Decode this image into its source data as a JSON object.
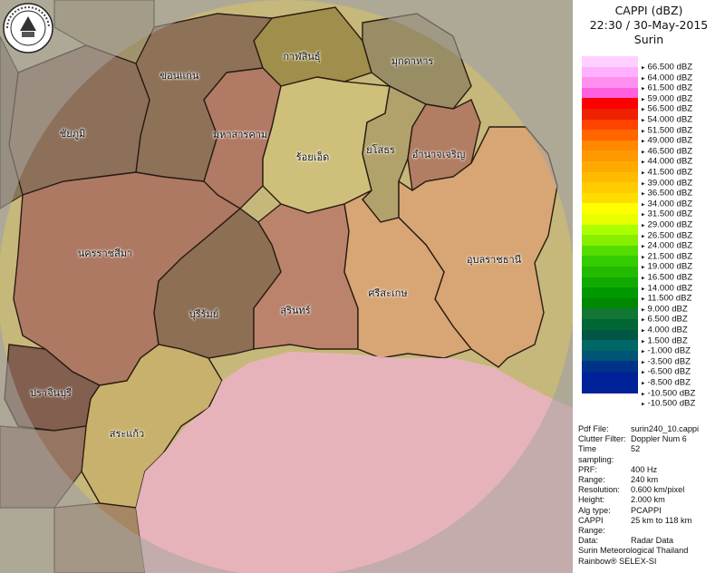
{
  "header": {
    "product": "CAPPI (dBZ)",
    "datetime": "22:30 / 30-May-2015",
    "station": "Surin"
  },
  "colors": {
    "province_fill": "#b97a6b",
    "olive": "#9a8e5e",
    "ring": "#d6c36c",
    "echo": "#f0b3c2"
  },
  "provinces": [
    {
      "name": "กาฬสินธุ์",
      "color": "#9e8c4a"
    },
    {
      "name": "มุกดาหาร",
      "color": "#978a64"
    },
    {
      "name": "ขอนแก่น",
      "color": "#8b6e56"
    },
    {
      "name": "ชัยภูมิ",
      "color": "#8a6c59"
    },
    {
      "name": "มหาสารคาม",
      "color": "#b07663"
    },
    {
      "name": "ร้อยเอ็ด",
      "color": "#cfc07a"
    },
    {
      "name": "ยโสธร",
      "color": "#b0a06a"
    },
    {
      "name": "อำนาจเจริญ",
      "color": "#b07a62"
    },
    {
      "name": "นครราชสีมา",
      "color": "#ad7561"
    },
    {
      "name": "บุรีรัมย์",
      "color": "#8a6a52"
    },
    {
      "name": "สุรินทร์",
      "color": "#ba806a"
    },
    {
      "name": "ศรีสะเกษ",
      "color": "#d8a474"
    },
    {
      "name": "อุบลราชธานี",
      "color": "#d8a474"
    },
    {
      "name": "ปราจีนบุรี",
      "color": "#7e5a4c"
    },
    {
      "name": "สระแก้ว",
      "color": "#c8b06c"
    }
  ],
  "legend": {
    "labels": [
      "66.500 dBZ",
      "64.000 dBZ",
      "61.500 dBZ",
      "59.000 dBZ",
      "56.500 dBZ",
      "54.000 dBZ",
      "51.500 dBZ",
      "49.000 dBZ",
      "46.500 dBZ",
      "44.000 dBZ",
      "41.500 dBZ",
      "39.000 dBZ",
      "36.500 dBZ",
      "34.000 dBZ",
      "31.500 dBZ",
      "29.000 dBZ",
      "26.500 dBZ",
      "24.000 dBZ",
      "21.500 dBZ",
      "19.000 dBZ",
      "16.500 dBZ",
      "14.000 dBZ",
      "11.500 dBZ",
      "9.000 dBZ",
      "6.500 dBZ",
      "4.000 dBZ",
      "1.500 dBZ",
      "-1.000 dBZ",
      "-3.500 dBZ",
      "-6.500 dBZ",
      "-8.500 dBZ",
      "-10.500 dBZ",
      "-10.500 dBZ"
    ],
    "colors": [
      "#ffd0ff",
      "#ffb0ff",
      "#ff90f0",
      "#ff60e0",
      "#ff0000",
      "#ee2200",
      "#ff4400",
      "#ff6600",
      "#ff8800",
      "#ff9900",
      "#ffaa00",
      "#ffbb00",
      "#ffcc00",
      "#ffdd00",
      "#ffff00",
      "#e8ff00",
      "#aaff00",
      "#88ee00",
      "#55dd00",
      "#33cc00",
      "#22bb00",
      "#11aa00",
      "#009900",
      "#008800",
      "#117733",
      "#006633",
      "#005544",
      "#006666",
      "#005577",
      "#003388",
      "#002299",
      "#002299"
    ]
  },
  "info": [
    {
      "k": "Pdf File:",
      "v": "surin240_10.cappi"
    },
    {
      "k": "Clutter Filter:",
      "v": "Doppler Num 6"
    },
    {
      "k": "Time sampling:",
      "v": "52"
    },
    {
      "k": "PRF:",
      "v": "400 Hz"
    },
    {
      "k": "Range:",
      "v": "240 km"
    },
    {
      "k": "Resolution:",
      "v": "0.600 km/pixel"
    },
    {
      "k": "Height:",
      "v": "2.000 km"
    },
    {
      "k": "Alg type:",
      "v": "PCAPPI"
    },
    {
      "k": "CAPPI Range:",
      "v": "25 km to 118 km"
    },
    {
      "k": "Data:",
      "v": "Radar Data"
    },
    {
      "k": "",
      "v": "Surin Meteorological Thailand"
    },
    {
      "k": "",
      "v": "Rainbow® SELEX-SI"
    }
  ]
}
